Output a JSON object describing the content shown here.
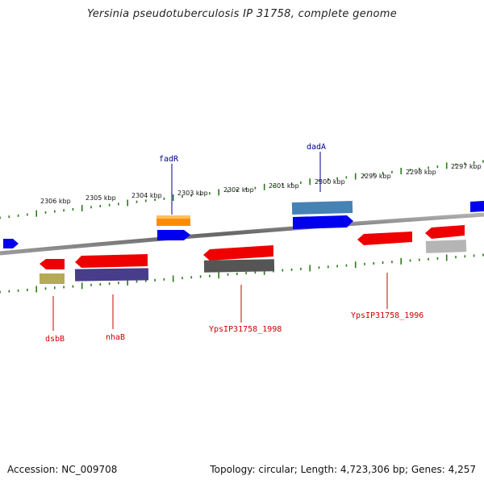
{
  "title": "Yersinia pseudotuberculosis IP 31758, complete genome",
  "footer": {
    "accession": "Accession: NC_009708",
    "topology": "Topology: circular; Length: 4,723,306 bp; Genes: 4,257"
  },
  "ruler_labels": [
    "2306 kbp",
    "2305 kbp",
    "2304 kbp",
    "2303 kbp",
    "2302 kbp",
    "2301 kbp",
    "2300 kbp",
    "2299 kbp",
    "2298 kbp",
    "2297 kbp"
  ],
  "gene_labels": {
    "fadR": "fadR",
    "dadA": "dadA",
    "dsbB": "dsbB",
    "nhaB": "nhaB",
    "yps1998": "YpsIP31758_1998",
    "yps1996": "YpsIP31758_1996"
  },
  "colors": {
    "forward": "#0000ee",
    "reverse": "#ee0000",
    "tick": "#2a7a1a",
    "label_forward": "#00008b",
    "label_reverse": "#cc0000"
  }
}
